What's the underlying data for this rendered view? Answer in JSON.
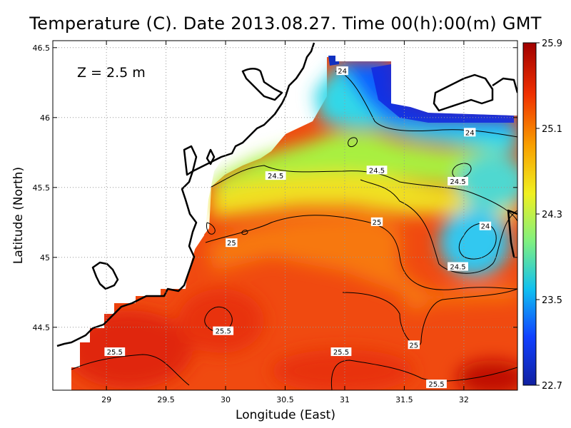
{
  "title": "Temperature (C). Date 2013.08.27. Time 00(h):00(m) GMT",
  "depth_label": "Z  =  2.5  m",
  "x_axis_label": "Longitude (East)",
  "y_axis_label": "Latitude (North)",
  "colors": {
    "scale": [
      "#1020a0",
      "#1040ff",
      "#10c0f0",
      "#80f080",
      "#f0f020",
      "#f8a000",
      "#f03000",
      "#a00000"
    ],
    "land": "#ffffff",
    "coast": "#000000",
    "contour": "#000000"
  },
  "chart_data": {
    "type": "heatmap",
    "title": "Temperature (C). Date 2013.08.27. Time 00(h):00(m) GMT",
    "xlabel": "Longitude (East)",
    "ylabel": "Latitude (North)",
    "xlim": [
      28.55,
      32.45
    ],
    "ylim": [
      44.05,
      46.55
    ],
    "x_ticks": [
      "29",
      "29.5",
      "30",
      "30.5",
      "31",
      "31.5",
      "32"
    ],
    "y_ticks": [
      "44.5",
      "45",
      "45.5",
      "46",
      "46.5"
    ],
    "grid": true,
    "colorbar": {
      "min": 22.7,
      "max": 25.9,
      "ticks": [
        "22.7",
        "23.5",
        "24.3",
        "25.1",
        "25.9"
      ]
    },
    "contour_levels": [
      24,
      24.5,
      25,
      25.5
    ],
    "contour_labels": [
      {
        "text": "24",
        "lon": 30.98,
        "lat": 46.33
      },
      {
        "text": "24",
        "lon": 32.05,
        "lat": 45.89
      },
      {
        "text": "24",
        "lon": 32.18,
        "lat": 45.22
      },
      {
        "text": "24.5",
        "lon": 30.42,
        "lat": 45.58
      },
      {
        "text": "24.5",
        "lon": 31.27,
        "lat": 45.62
      },
      {
        "text": "24.5",
        "lon": 31.95,
        "lat": 45.54
      },
      {
        "text": "24.5",
        "lon": 31.95,
        "lat": 44.93
      },
      {
        "text": "25",
        "lon": 31.27,
        "lat": 45.25
      },
      {
        "text": "25",
        "lon": 30.05,
        "lat": 45.1
      },
      {
        "text": "25",
        "lon": 31.58,
        "lat": 44.37
      },
      {
        "text": "25.5",
        "lon": 29.98,
        "lat": 44.47
      },
      {
        "text": "25.5",
        "lon": 29.07,
        "lat": 44.32
      },
      {
        "text": "25.5",
        "lon": 30.97,
        "lat": 44.32
      },
      {
        "text": "25.5",
        "lon": 31.77,
        "lat": 44.09
      }
    ]
  }
}
